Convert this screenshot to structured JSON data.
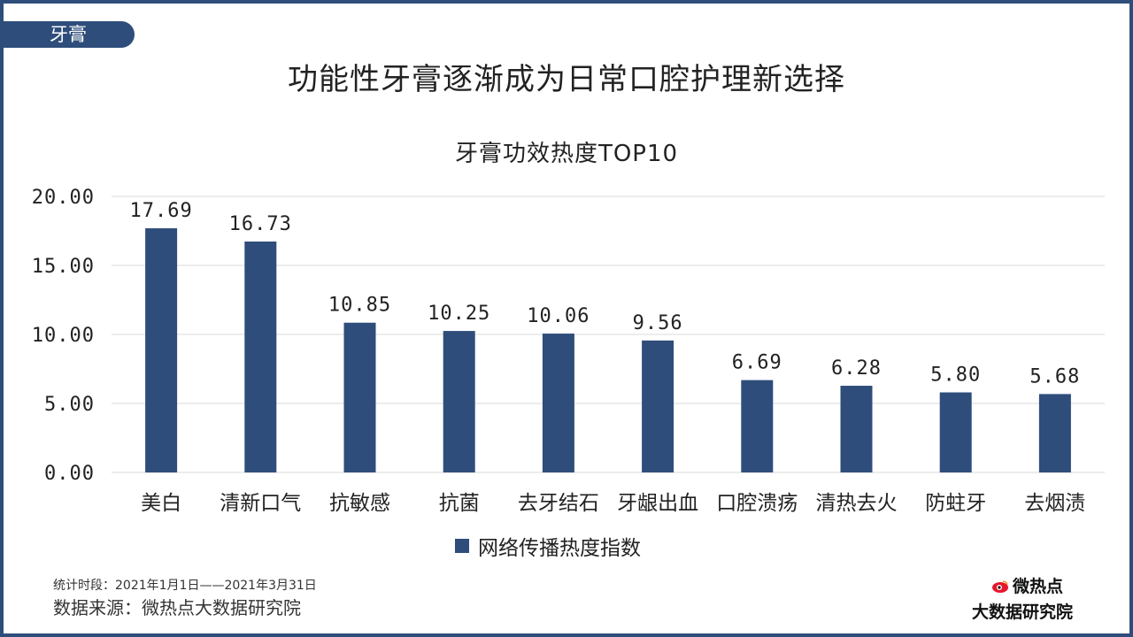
{
  "tag": "牙膏",
  "page_title": "功能性牙膏逐渐成为日常口腔护理新选择",
  "footnote": {
    "period": "统计时段：2021年1月1日——2021年3月31日",
    "source": "数据来源：微热点大数据研究院"
  },
  "logo": {
    "top": "微热点",
    "bottom": "大数据研究院",
    "icon": "weibo-eye-logo-icon"
  },
  "colors": {
    "bar": "#2E4D7B",
    "frame": "#2E4D7B",
    "grid": "#D9D9D9",
    "logo_red": "#E6162D"
  },
  "chart_data": {
    "type": "bar",
    "title": "牙膏功效热度TOP10",
    "categories": [
      "美白",
      "清新口气",
      "抗敏感",
      "抗菌",
      "去牙结石",
      "牙龈出血",
      "口腔溃疡",
      "清热去火",
      "防蛀牙",
      "去烟渍"
    ],
    "series": [
      {
        "name": "网络传播热度指数",
        "values": [
          17.69,
          16.73,
          10.85,
          10.25,
          10.06,
          9.56,
          6.69,
          6.28,
          5.8,
          5.68
        ]
      }
    ],
    "value_labels": [
      "17.69",
      "16.73",
      "10.85",
      "10.25",
      "10.06",
      "9.56",
      "6.69",
      "6.28",
      "5.80",
      "5.68"
    ],
    "yticks": [
      "0.00",
      "5.00",
      "10.00",
      "15.00",
      "20.00"
    ],
    "ylim": [
      0,
      20
    ],
    "grid": true,
    "legend_position": "bottom",
    "xlabel": "",
    "ylabel": ""
  }
}
